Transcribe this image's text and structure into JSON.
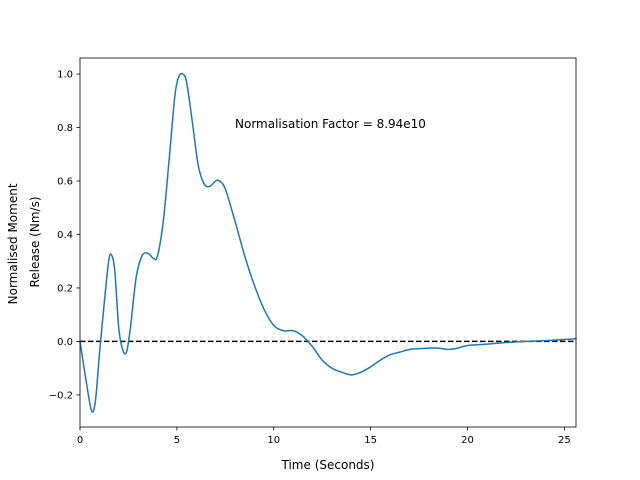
{
  "chart_data": {
    "type": "line",
    "xlabel": "Time (Seconds)",
    "ylabel_lines": [
      "Normalised Moment",
      "Release (Nm/s)"
    ],
    "annotation": "Normalisation Factor = 8.94e10",
    "xlim": [
      0,
      25.6
    ],
    "ylim": [
      -0.32,
      1.06
    ],
    "xticks": [
      0,
      5,
      10,
      15,
      20,
      25
    ],
    "yticks": [
      -0.2,
      0.0,
      0.2,
      0.4,
      0.6,
      0.8,
      1.0
    ],
    "xtick_labels": [
      "0",
      "5",
      "10",
      "15",
      "20",
      "25"
    ],
    "ytick_labels": [
      "−0.2",
      "0.0",
      "0.2",
      "0.4",
      "0.6",
      "0.8",
      "1.0"
    ],
    "reference_line": {
      "y": 0,
      "style": "dashed",
      "color": "#000000"
    },
    "grid": false,
    "series": [
      {
        "color": "#1f77b4",
        "x": [
          0,
          0.3,
          0.6,
          0.8,
          1.0,
          1.3,
          1.5,
          1.65,
          1.8,
          2.0,
          2.2,
          2.4,
          2.6,
          2.9,
          3.2,
          3.5,
          3.8,
          4.0,
          4.3,
          4.6,
          4.9,
          5.1,
          5.3,
          5.5,
          5.8,
          6.1,
          6.4,
          6.7,
          7.0,
          7.2,
          7.5,
          8.0,
          8.5,
          9.0,
          9.5,
          10.0,
          10.5,
          11.0,
          11.5,
          12.0,
          12.5,
          13.0,
          13.5,
          14.0,
          14.5,
          15.0,
          15.5,
          16.0,
          16.5,
          17.0,
          17.5,
          18.0,
          18.5,
          19.0,
          19.5,
          20.0,
          21.0,
          22.0,
          23.0,
          24.0,
          25.0,
          25.6
        ],
        "y": [
          0.0,
          -0.14,
          -0.26,
          -0.22,
          -0.05,
          0.18,
          0.31,
          0.32,
          0.26,
          0.05,
          -0.03,
          -0.04,
          0.05,
          0.24,
          0.32,
          0.33,
          0.31,
          0.32,
          0.45,
          0.68,
          0.92,
          0.99,
          1.0,
          0.97,
          0.82,
          0.66,
          0.59,
          0.58,
          0.6,
          0.6,
          0.57,
          0.45,
          0.32,
          0.21,
          0.12,
          0.06,
          0.04,
          0.04,
          0.02,
          -0.02,
          -0.07,
          -0.1,
          -0.115,
          -0.125,
          -0.115,
          -0.095,
          -0.07,
          -0.05,
          -0.04,
          -0.03,
          -0.027,
          -0.025,
          -0.025,
          -0.03,
          -0.025,
          -0.015,
          -0.01,
          -0.004,
          0.0,
          0.003,
          0.007,
          0.01
        ]
      }
    ]
  }
}
